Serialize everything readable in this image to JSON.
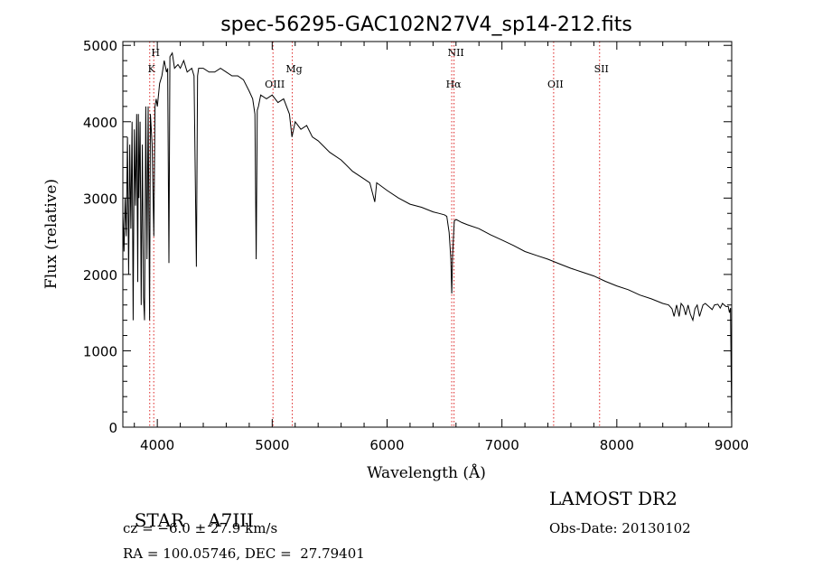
{
  "chart_data": {
    "type": "line",
    "title": "spec-56295-GAC102N27V4_sp14-212.fits",
    "xlabel": "Wavelength (Å)",
    "ylabel": "Flux (relative)",
    "xlim": [
      3700,
      9000
    ],
    "ylim": [
      0,
      5050
    ],
    "xticks": [
      4000,
      5000,
      6000,
      7000,
      8000,
      9000
    ],
    "yticks": [
      0,
      1000,
      2000,
      3000,
      4000,
      5000
    ],
    "grid": false,
    "series": [
      {
        "x": [
          3700,
          3710,
          3720,
          3730,
          3740,
          3750,
          3760,
          3770,
          3780,
          3790,
          3800,
          3810,
          3820,
          3830,
          3835,
          3840,
          3850,
          3860,
          3870,
          3880,
          3889,
          3900,
          3910,
          3920,
          3933,
          3940,
          3955,
          3970,
          3980,
          3990,
          4000,
          4020,
          4040,
          4060,
          4080,
          4090,
          4101,
          4110,
          4130,
          4150,
          4180,
          4200,
          4230,
          4260,
          4300,
          4320,
          4340,
          4350,
          4360,
          4400,
          4450,
          4500,
          4550,
          4600,
          4650,
          4700,
          4750,
          4800,
          4830,
          4850,
          4861,
          4870,
          4880,
          4900,
          4950,
          5000,
          5050,
          5100,
          5150,
          5172,
          5200,
          5250,
          5300,
          5350,
          5400,
          5500,
          5600,
          5700,
          5800,
          5850,
          5893,
          5910,
          6000,
          6100,
          6200,
          6300,
          6400,
          6450,
          6500,
          6520,
          6540,
          6555,
          6563,
          6570,
          6585,
          6600,
          6650,
          6700,
          6800,
          6900,
          7000,
          7100,
          7200,
          7300,
          7400,
          7500,
          7600,
          7700,
          7800,
          7900,
          8000,
          8100,
          8200,
          8300,
          8400,
          8450,
          8480,
          8498,
          8520,
          8542,
          8560,
          8580,
          8600,
          8620,
          8640,
          8662,
          8680,
          8700,
          8720,
          8750,
          8770,
          8800,
          8830,
          8850,
          8880,
          8900,
          8920,
          8950,
          8970,
          8980,
          8990,
          9000
        ],
        "values": [
          2800,
          2300,
          3000,
          2500,
          3800,
          2000,
          3700,
          2600,
          4000,
          1400,
          3900,
          2900,
          4100,
          1900,
          4100,
          3000,
          4000,
          1600,
          3700,
          1700,
          1400,
          4200,
          2200,
          4200,
          1400,
          4100,
          3700,
          2500,
          4200,
          4300,
          4200,
          4500,
          4600,
          4800,
          4650,
          4700,
          2150,
          4850,
          4900,
          4700,
          4750,
          4700,
          4800,
          4650,
          4700,
          4600,
          2100,
          4600,
          4700,
          4700,
          4650,
          4650,
          4700,
          4650,
          4600,
          4600,
          4550,
          4400,
          4300,
          4100,
          2200,
          4150,
          4200,
          4350,
          4300,
          4350,
          4250,
          4300,
          4100,
          3800,
          4000,
          3900,
          3950,
          3800,
          3750,
          3600,
          3500,
          3350,
          3250,
          3200,
          2950,
          3200,
          3100,
          3000,
          2920,
          2880,
          2820,
          2800,
          2780,
          2760,
          2550,
          2200,
          1750,
          2250,
          2700,
          2720,
          2680,
          2650,
          2600,
          2520,
          2450,
          2380,
          2300,
          2250,
          2200,
          2140,
          2080,
          2030,
          1980,
          1910,
          1850,
          1800,
          1730,
          1680,
          1620,
          1600,
          1550,
          1450,
          1600,
          1450,
          1620,
          1580,
          1470,
          1600,
          1480,
          1400,
          1550,
          1600,
          1450,
          1600,
          1620,
          1580,
          1540,
          1600,
          1610,
          1560,
          1620,
          1580,
          1580,
          1500,
          1560,
          0
        ]
      }
    ],
    "lines": [
      {
        "x": 3934,
        "label": "K"
      },
      {
        "x": 3969,
        "label": "H"
      },
      {
        "x": 5007,
        "label": "OIII"
      },
      {
        "x": 5175,
        "label": "Mg"
      },
      {
        "x": 6563,
        "label": "Hα"
      },
      {
        "x": 6583,
        "label": "NII"
      },
      {
        "x": 7450,
        "label": "OII"
      },
      {
        "x": 7850,
        "label": "SII"
      }
    ]
  },
  "info": {
    "class": "STAR",
    "subclass": "A7III",
    "survey": "LAMOST DR2",
    "cz": "cz = −6.0 ± 27.9 km/s",
    "obs_date": "Obs-Date: 20130102",
    "coords": "RA = 100.05746, DEC =  27.79401"
  }
}
